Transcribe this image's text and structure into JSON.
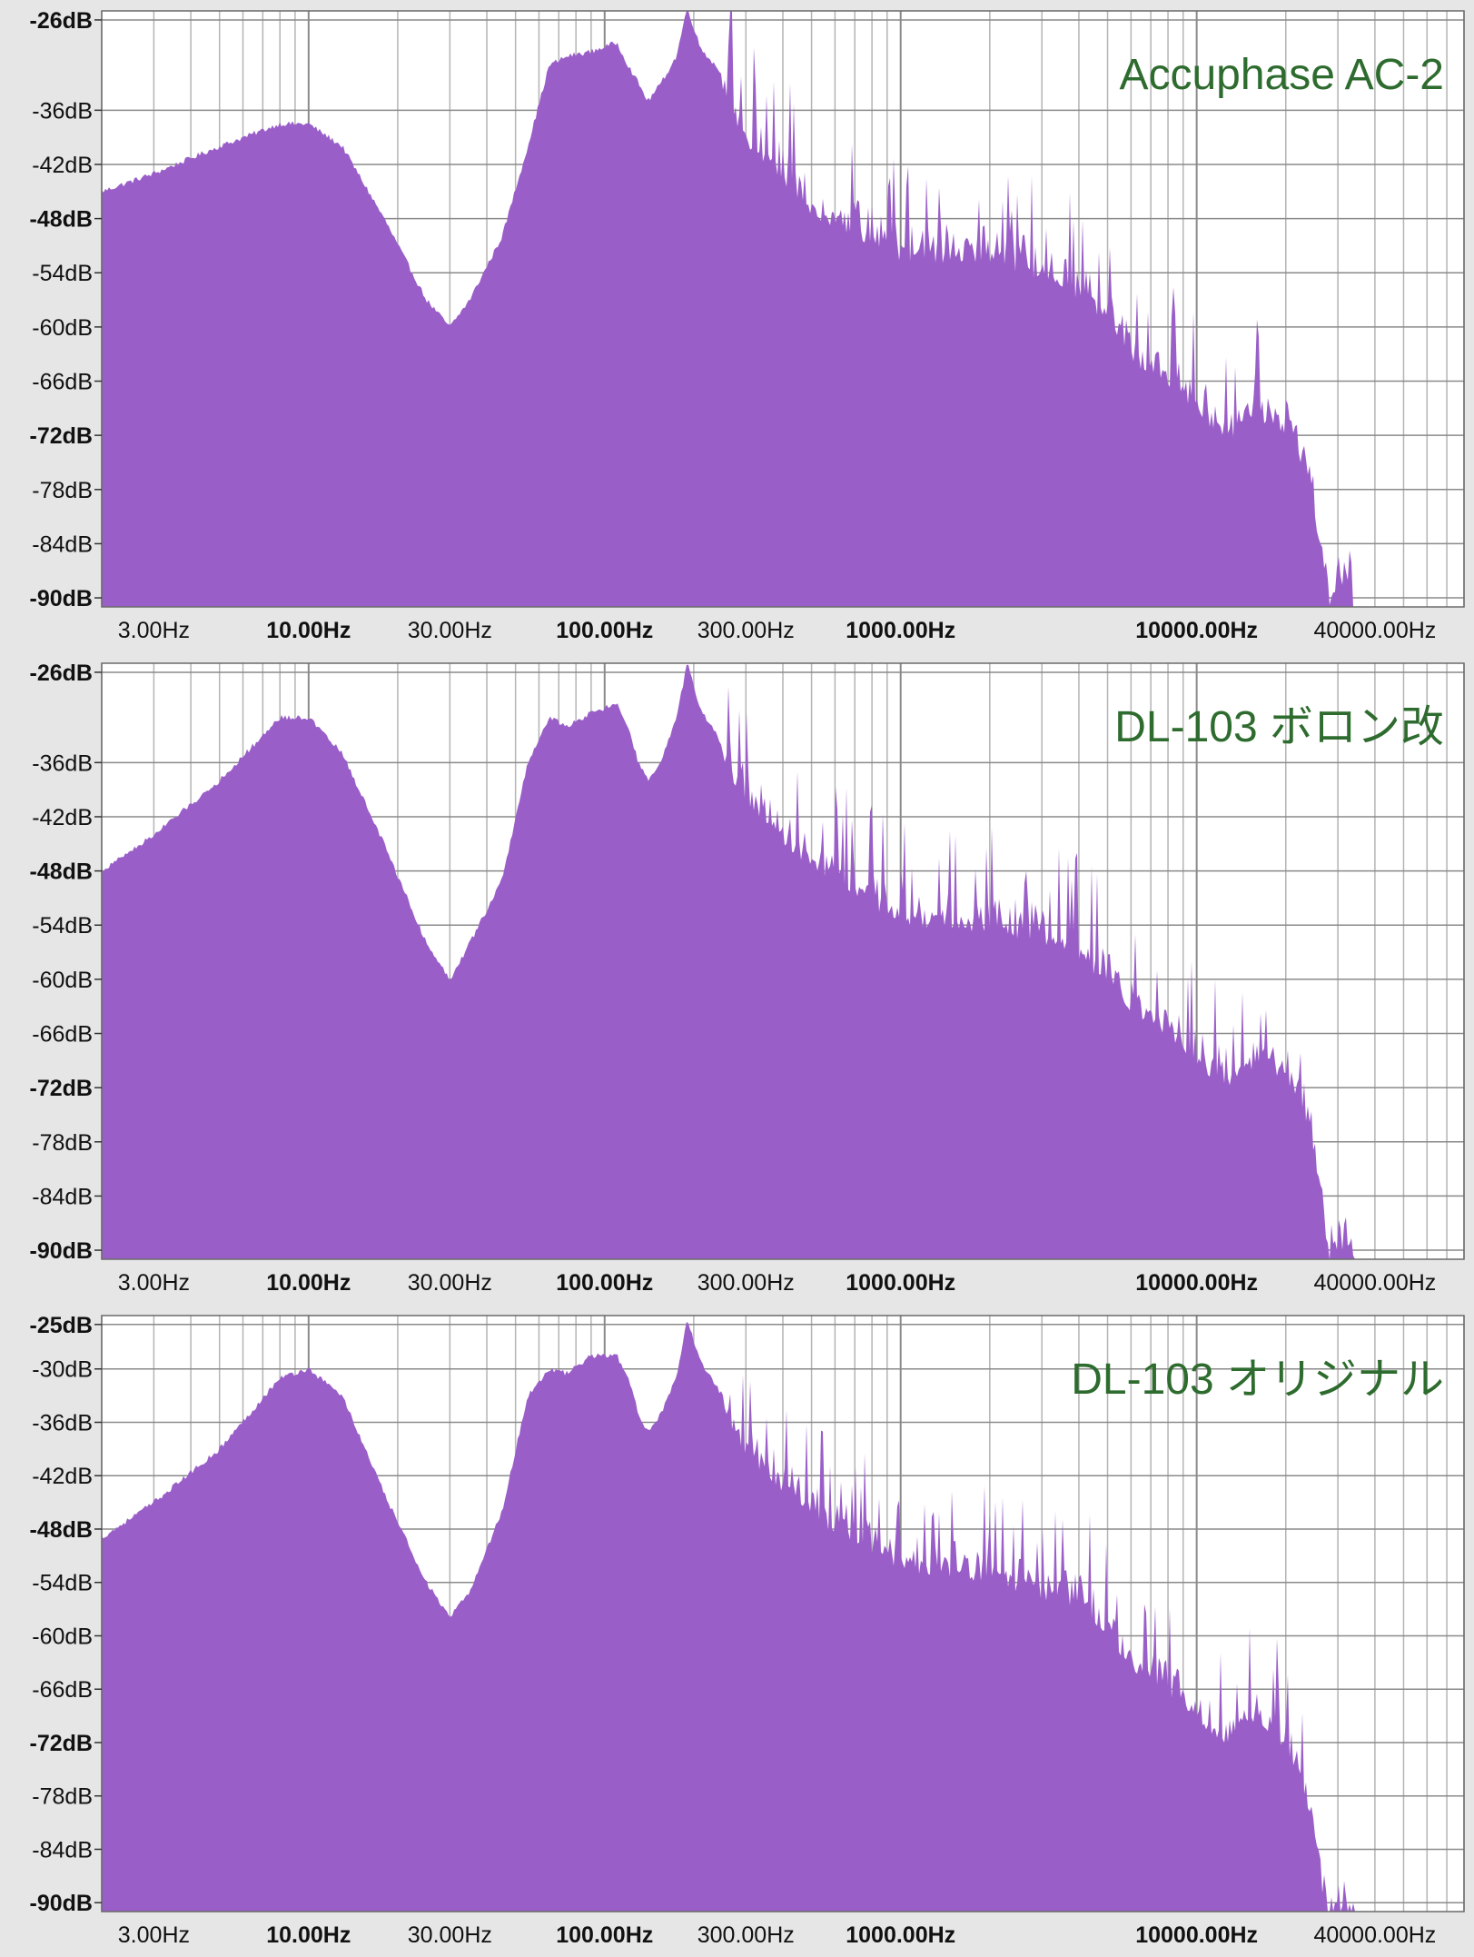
{
  "colors": {
    "fill": "#9a5ec8",
    "title": "#2e6b2e",
    "grid": "#9c9c9c",
    "plot_bg": "#ffffff",
    "frame": "#e6e6e6"
  },
  "chart_data": [
    {
      "type": "area",
      "title": "Accuphase AC-2",
      "x_scale": "log",
      "xlim": [
        2,
        80000
      ],
      "ylim": [
        -91,
        -25
      ],
      "grid": true,
      "y_ticks": [
        {
          "value": -26,
          "label": "-26dB",
          "bold": true
        },
        {
          "value": -36,
          "label": "-36dB",
          "bold": false
        },
        {
          "value": -42,
          "label": "-42dB",
          "bold": false
        },
        {
          "value": -48,
          "label": "-48dB",
          "bold": true
        },
        {
          "value": -54,
          "label": "-54dB",
          "bold": false
        },
        {
          "value": -60,
          "label": "-60dB",
          "bold": false
        },
        {
          "value": -66,
          "label": "-66dB",
          "bold": false
        },
        {
          "value": -72,
          "label": "-72dB",
          "bold": true
        },
        {
          "value": -78,
          "label": "-78dB",
          "bold": false
        },
        {
          "value": -84,
          "label": "-84dB",
          "bold": false
        },
        {
          "value": -90,
          "label": "-90dB",
          "bold": true
        }
      ],
      "x_ticks": [
        {
          "value": 3,
          "label": "3.00Hz",
          "bold": false
        },
        {
          "value": 10,
          "label": "10.00Hz",
          "bold": true
        },
        {
          "value": 30,
          "label": "30.00Hz",
          "bold": false
        },
        {
          "value": 100,
          "label": "100.00Hz",
          "bold": true
        },
        {
          "value": 300,
          "label": "300.00Hz",
          "bold": false
        },
        {
          "value": 1000,
          "label": "1000.00Hz",
          "bold": true
        },
        {
          "value": 10000,
          "label": "10000.00Hz",
          "bold": true
        },
        {
          "value": 40000,
          "label": "40000.00Hz",
          "bold": false
        }
      ],
      "envelope": [
        [
          2,
          -45
        ],
        [
          3,
          -43
        ],
        [
          5,
          -40
        ],
        [
          8,
          -37.5
        ],
        [
          10,
          -37.5
        ],
        [
          13,
          -40
        ],
        [
          18,
          -48
        ],
        [
          25,
          -57
        ],
        [
          30,
          -60
        ],
        [
          35,
          -57
        ],
        [
          45,
          -50
        ],
        [
          55,
          -40
        ],
        [
          65,
          -31
        ],
        [
          75,
          -30
        ],
        [
          90,
          -29.5
        ],
        [
          110,
          -28.5
        ],
        [
          120,
          -31
        ],
        [
          130,
          -33
        ],
        [
          140,
          -35
        ],
        [
          155,
          -33
        ],
        [
          175,
          -30
        ],
        [
          190,
          -24.5
        ],
        [
          210,
          -29
        ],
        [
          250,
          -32
        ],
        [
          300,
          -38
        ],
        [
          400,
          -42
        ],
        [
          500,
          -46
        ],
        [
          700,
          -48
        ],
        [
          1000,
          -51
        ],
        [
          2000,
          -51
        ],
        [
          3000,
          -53
        ],
        [
          4000,
          -55
        ],
        [
          5000,
          -58
        ],
        [
          6000,
          -62
        ],
        [
          7500,
          -64
        ],
        [
          9000,
          -66
        ],
        [
          11000,
          -69
        ],
        [
          13000,
          -71
        ],
        [
          16000,
          -69
        ],
        [
          20000,
          -70
        ],
        [
          23000,
          -74
        ],
        [
          25000,
          -79
        ],
        [
          26000,
          -83
        ],
        [
          27000,
          -87
        ],
        [
          28000,
          -90
        ],
        [
          29000,
          -88
        ],
        [
          31000,
          -87
        ],
        [
          33000,
          -86.5
        ],
        [
          34000,
          -91
        ]
      ]
    },
    {
      "type": "area",
      "title": "DL-103 ボロン改",
      "x_scale": "log",
      "xlim": [
        2,
        80000
      ],
      "ylim": [
        -91,
        -25
      ],
      "grid": true,
      "y_ticks": [
        {
          "value": -26,
          "label": "-26dB",
          "bold": true
        },
        {
          "value": -36,
          "label": "-36dB",
          "bold": false
        },
        {
          "value": -42,
          "label": "-42dB",
          "bold": false
        },
        {
          "value": -48,
          "label": "-48dB",
          "bold": true
        },
        {
          "value": -54,
          "label": "-54dB",
          "bold": false
        },
        {
          "value": -60,
          "label": "-60dB",
          "bold": false
        },
        {
          "value": -66,
          "label": "-66dB",
          "bold": false
        },
        {
          "value": -72,
          "label": "-72dB",
          "bold": true
        },
        {
          "value": -78,
          "label": "-78dB",
          "bold": false
        },
        {
          "value": -84,
          "label": "-84dB",
          "bold": false
        },
        {
          "value": -90,
          "label": "-90dB",
          "bold": true
        }
      ],
      "x_ticks": [
        {
          "value": 3,
          "label": "3.00Hz",
          "bold": false
        },
        {
          "value": 10,
          "label": "10.00Hz",
          "bold": true
        },
        {
          "value": 30,
          "label": "30.00Hz",
          "bold": false
        },
        {
          "value": 100,
          "label": "100.00Hz",
          "bold": true
        },
        {
          "value": 300,
          "label": "300.00Hz",
          "bold": false
        },
        {
          "value": 1000,
          "label": "1000.00Hz",
          "bold": true
        },
        {
          "value": 10000,
          "label": "10000.00Hz",
          "bold": true
        },
        {
          "value": 40000,
          "label": "40000.00Hz",
          "bold": false
        }
      ],
      "envelope": [
        [
          2,
          -48
        ],
        [
          3,
          -44
        ],
        [
          5,
          -38
        ],
        [
          8,
          -31
        ],
        [
          10,
          -31
        ],
        [
          13,
          -35
        ],
        [
          18,
          -45
        ],
        [
          25,
          -56
        ],
        [
          30,
          -60
        ],
        [
          35,
          -56
        ],
        [
          45,
          -49
        ],
        [
          55,
          -36
        ],
        [
          65,
          -31
        ],
        [
          75,
          -32
        ],
        [
          90,
          -30.5
        ],
        [
          110,
          -29.5
        ],
        [
          120,
          -32
        ],
        [
          130,
          -36
        ],
        [
          140,
          -38
        ],
        [
          155,
          -36
        ],
        [
          175,
          -31
        ],
        [
          190,
          -25
        ],
        [
          210,
          -30
        ],
        [
          250,
          -34
        ],
        [
          300,
          -39
        ],
        [
          400,
          -43
        ],
        [
          500,
          -46
        ],
        [
          700,
          -49
        ],
        [
          1000,
          -52
        ],
        [
          2000,
          -53
        ],
        [
          3000,
          -54
        ],
        [
          4000,
          -56
        ],
        [
          5000,
          -59
        ],
        [
          6000,
          -62
        ],
        [
          7500,
          -64
        ],
        [
          9000,
          -66
        ],
        [
          11000,
          -69
        ],
        [
          13000,
          -70
        ],
        [
          16000,
          -68
        ],
        [
          20000,
          -69
        ],
        [
          23000,
          -73
        ],
        [
          25000,
          -78
        ],
        [
          26000,
          -82
        ],
        [
          27000,
          -87
        ],
        [
          28000,
          -90
        ],
        [
          29000,
          -88
        ],
        [
          31000,
          -88.5
        ],
        [
          33000,
          -88
        ],
        [
          34000,
          -91
        ]
      ]
    },
    {
      "type": "area",
      "title": "DL-103 オリジナル",
      "x_scale": "log",
      "xlim": [
        2,
        80000
      ],
      "ylim": [
        -91,
        -24
      ],
      "grid": true,
      "y_ticks": [
        {
          "value": -25,
          "label": "-25dB",
          "bold": true
        },
        {
          "value": -30,
          "label": "-30dB",
          "bold": false
        },
        {
          "value": -36,
          "label": "-36dB",
          "bold": false
        },
        {
          "value": -42,
          "label": "-42dB",
          "bold": false
        },
        {
          "value": -48,
          "label": "-48dB",
          "bold": true
        },
        {
          "value": -54,
          "label": "-54dB",
          "bold": false
        },
        {
          "value": -60,
          "label": "-60dB",
          "bold": false
        },
        {
          "value": -66,
          "label": "-66dB",
          "bold": false
        },
        {
          "value": -72,
          "label": "-72dB",
          "bold": true
        },
        {
          "value": -78,
          "label": "-78dB",
          "bold": false
        },
        {
          "value": -84,
          "label": "-84dB",
          "bold": false
        },
        {
          "value": -90,
          "label": "-90dB",
          "bold": true
        }
      ],
      "x_ticks": [
        {
          "value": 3,
          "label": "3.00Hz",
          "bold": false
        },
        {
          "value": 10,
          "label": "10.00Hz",
          "bold": true
        },
        {
          "value": 30,
          "label": "30.00Hz",
          "bold": false
        },
        {
          "value": 100,
          "label": "100.00Hz",
          "bold": true
        },
        {
          "value": 300,
          "label": "300.00Hz",
          "bold": false
        },
        {
          "value": 1000,
          "label": "1000.00Hz",
          "bold": true
        },
        {
          "value": 10000,
          "label": "10000.00Hz",
          "bold": true
        },
        {
          "value": 40000,
          "label": "40000.00Hz",
          "bold": false
        }
      ],
      "envelope": [
        [
          2,
          -49
        ],
        [
          3,
          -45
        ],
        [
          5,
          -39
        ],
        [
          8,
          -31
        ],
        [
          10,
          -30
        ],
        [
          13,
          -33
        ],
        [
          18,
          -44
        ],
        [
          25,
          -54
        ],
        [
          30,
          -58
        ],
        [
          35,
          -55
        ],
        [
          45,
          -46
        ],
        [
          55,
          -33
        ],
        [
          65,
          -30
        ],
        [
          75,
          -30.5
        ],
        [
          90,
          -28.5
        ],
        [
          110,
          -28.5
        ],
        [
          120,
          -31
        ],
        [
          130,
          -35
        ],
        [
          140,
          -37
        ],
        [
          155,
          -35
        ],
        [
          175,
          -31
        ],
        [
          190,
          -24.5
        ],
        [
          210,
          -29
        ],
        [
          250,
          -33
        ],
        [
          300,
          -38
        ],
        [
          400,
          -42
        ],
        [
          500,
          -45
        ],
        [
          700,
          -48
        ],
        [
          1000,
          -51
        ],
        [
          2000,
          -52
        ],
        [
          3000,
          -54
        ],
        [
          4000,
          -55
        ],
        [
          5000,
          -58
        ],
        [
          6000,
          -62
        ],
        [
          7500,
          -64
        ],
        [
          9000,
          -66
        ],
        [
          11000,
          -69
        ],
        [
          13000,
          -71
        ],
        [
          16000,
          -68
        ],
        [
          20000,
          -71
        ],
        [
          23000,
          -76
        ],
        [
          25000,
          -80
        ],
        [
          26000,
          -85
        ],
        [
          27000,
          -89
        ],
        [
          28000,
          -90
        ],
        [
          29000,
          -90
        ],
        [
          31000,
          -89
        ],
        [
          33000,
          -90
        ],
        [
          34000,
          -91
        ]
      ]
    }
  ]
}
